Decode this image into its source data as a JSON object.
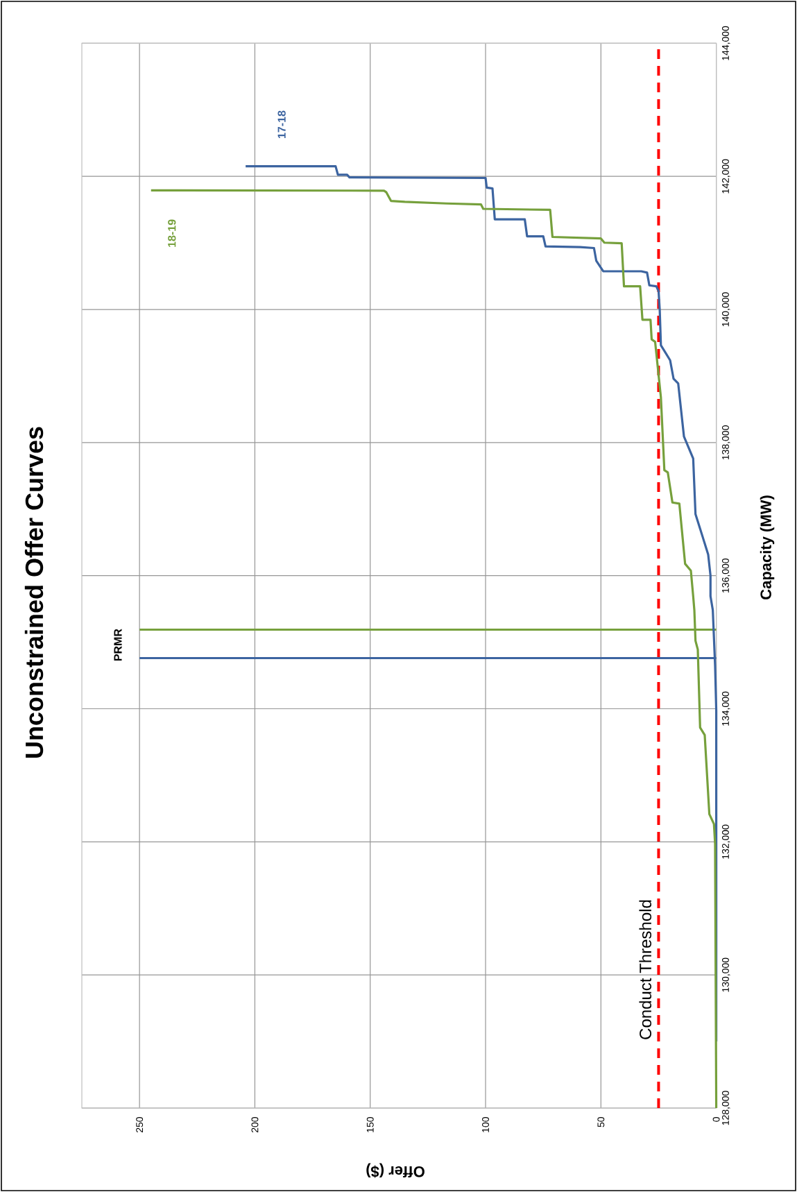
{
  "chart_data": {
    "type": "line",
    "title": "Unconstrained Offer Curves",
    "xlabel": "Offer ($)",
    "ylabel": "Capacity (MW)",
    "xlim": [
      275,
      0
    ],
    "ylim": [
      128000,
      144000
    ],
    "xticks": [
      0,
      50,
      100,
      150,
      200,
      250
    ],
    "yticks": [
      {
        "value": 128000,
        "label": "128,000"
      },
      {
        "value": 130000,
        "label": "130,000"
      },
      {
        "value": 132000,
        "label": "132,000"
      },
      {
        "value": 134000,
        "label": "134,000"
      },
      {
        "value": 136000,
        "label": "136,000"
      },
      {
        "value": 138000,
        "label": "138,000"
      },
      {
        "value": 140000,
        "label": "140,000"
      },
      {
        "value": 142000,
        "label": "142,000"
      },
      {
        "value": 144000,
        "label": "144,000"
      }
    ],
    "grid": true,
    "series": [
      {
        "name": "17-18",
        "color": "#3c64a0",
        "x": [
          0,
          0,
          0.5,
          1.5,
          2.5,
          2.5,
          3.5,
          6,
          9,
          10,
          14,
          16.5,
          18.5,
          20,
          24,
          24.5,
          25,
          26,
          29,
          30,
          32.5,
          49,
          52,
          53,
          59,
          74,
          75,
          82,
          83,
          96,
          97,
          99.5,
          100,
          159,
          160,
          164,
          165,
          204
        ],
        "values": [
          129000,
          133970,
          134650,
          135483,
          135691,
          136004,
          136317,
          136595,
          136925,
          137759,
          138090,
          138889,
          138958,
          139237,
          139463,
          139990,
          140277,
          140348,
          140363,
          140554,
          140574,
          140574,
          140731,
          140923,
          140937,
          140947,
          141100,
          141100,
          141354,
          141354,
          141818,
          141832,
          141976,
          141986,
          142024,
          142024,
          142153,
          142153
        ]
      },
      {
        "name": "18-19",
        "color": "#76a03c",
        "x": [
          0,
          0.5,
          1,
          3,
          5,
          7,
          8,
          9,
          9.5,
          10,
          11,
          13.5,
          16,
          19,
          21,
          22.5,
          24,
          26.5,
          28,
          28.5,
          32,
          33,
          40,
          41,
          48.5,
          50,
          71,
          72,
          101,
          102,
          117,
          135,
          141,
          143,
          144,
          245
        ],
        "values": [
          128000,
          131970,
          132268,
          132417,
          133606,
          133718,
          134890,
          135021,
          135483,
          135691,
          136074,
          136178,
          137082,
          137099,
          137551,
          137586,
          138681,
          139515,
          139550,
          139845,
          139845,
          140348,
          140348,
          140995,
          141004,
          141067,
          141090,
          141497,
          141512,
          141579,
          141593,
          141617,
          141631,
          141761,
          141785,
          141790
        ]
      }
    ],
    "ref_lines": [
      {
        "axis": "x",
        "value": 25,
        "label": "Conduct Threshold",
        "color": "#ff0000",
        "line_style": "dashed"
      },
      {
        "axis": "y",
        "value": 134760,
        "label": "PRMR",
        "color": "#3c64a0",
        "line_style": "solid"
      },
      {
        "axis": "y",
        "value": 135190,
        "color": "#76a03c",
        "line_style": "solid"
      }
    ]
  }
}
